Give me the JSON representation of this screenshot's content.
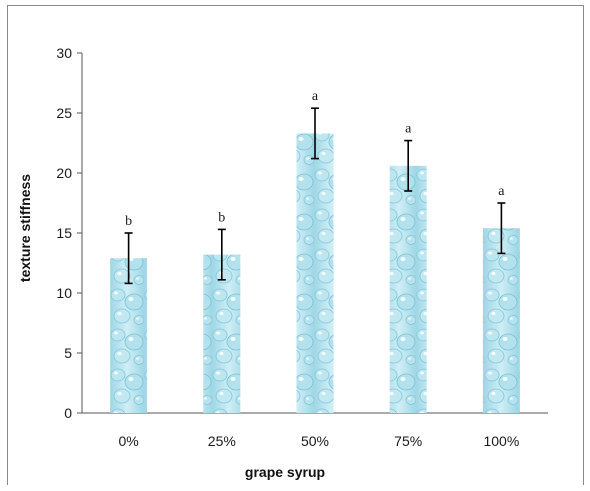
{
  "chart_data": {
    "type": "bar",
    "xlabel": "grape syrup",
    "ylabel": "texture stiffness",
    "categories": [
      "0%",
      "25%",
      "50%",
      "75%",
      "100%"
    ],
    "values": [
      12.9,
      13.2,
      23.3,
      20.6,
      15.4
    ],
    "error": [
      2.1,
      2.1,
      2.1,
      2.1,
      2.1
    ],
    "significance": [
      "b",
      "b",
      "a",
      "a",
      "a"
    ],
    "ylim": [
      0,
      30
    ],
    "yticks": [
      0,
      5,
      10,
      15,
      20,
      25,
      30
    ],
    "grid": false,
    "legend": "none",
    "bar_fill": "water-droplet texture",
    "colors": {
      "bar_light": "#d7f1f7",
      "bar_mid": "#aee0ec",
      "bar_dark": "#7fc6d8",
      "error_bar": "#000000",
      "axis": "#555555"
    }
  }
}
